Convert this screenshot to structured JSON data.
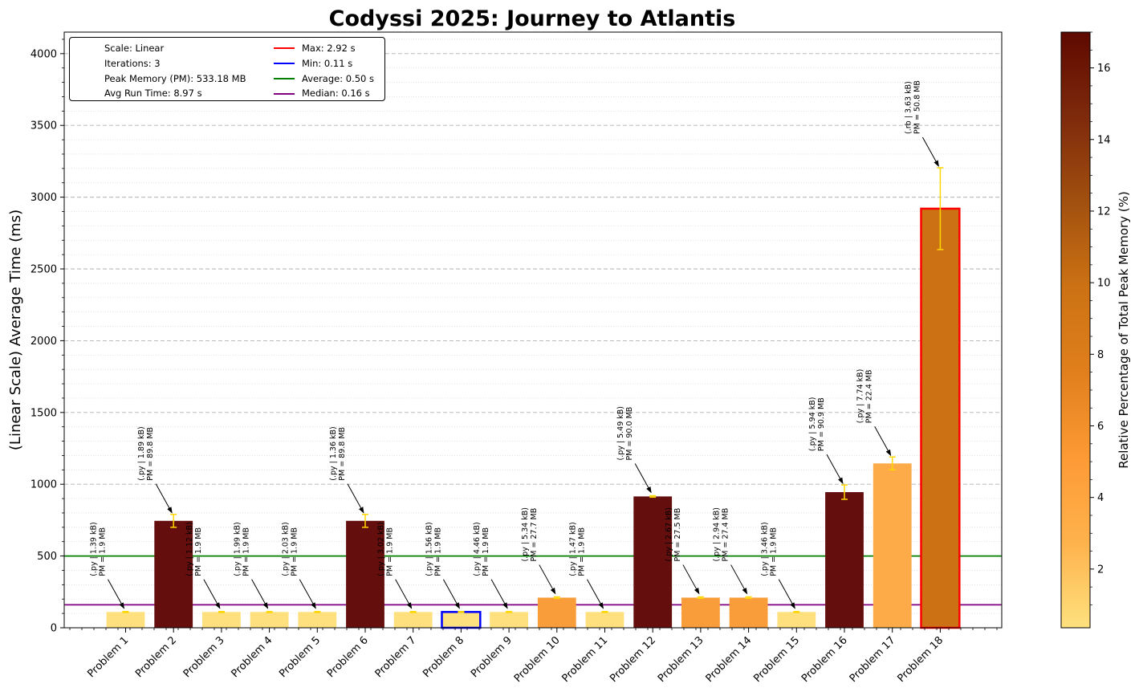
{
  "chart_data": {
    "type": "bar",
    "title": "Codyssi 2025: Journey to Atlantis",
    "ylabel": "(Linear Scale) Average Time (ms)",
    "xlabel": "",
    "ylim": [
      0,
      4150
    ],
    "yticks": [
      0,
      500,
      1000,
      1500,
      2000,
      2500,
      3000,
      3500,
      4000
    ],
    "grid": "horizontal dashed major, dotted minor",
    "categories": [
      "Problem 1",
      "Problem 2",
      "Problem 3",
      "Problem 4",
      "Problem 5",
      "Problem 6",
      "Problem 7",
      "Problem 8",
      "Problem 9",
      "Problem 10",
      "Problem 11",
      "Problem 12",
      "Problem 13",
      "Problem 14",
      "Problem 15",
      "Problem 16",
      "Problem 17",
      "Problem 18"
    ],
    "values": [
      110,
      745,
      110,
      110,
      110,
      745,
      110,
      110,
      110,
      210,
      110,
      915,
      210,
      210,
      110,
      945,
      1145,
      2920
    ],
    "errors": [
      3,
      45,
      3,
      3,
      3,
      45,
      3,
      3,
      3,
      5,
      3,
      5,
      5,
      5,
      3,
      50,
      45,
      285
    ],
    "memory_percent": [
      0.36,
      16.8,
      0.36,
      0.36,
      0.36,
      16.8,
      0.36,
      0.36,
      0.36,
      5.2,
      0.36,
      16.9,
      5.2,
      5.1,
      0.36,
      17.0,
      4.2,
      9.5
    ],
    "bar_colors": [
      "#fee17e",
      "#640e0d",
      "#fee17e",
      "#fee17e",
      "#fee17e",
      "#640e0d",
      "#fee17e",
      "#fee17e",
      "#fee17e",
      "#f99d3a",
      "#fee17e",
      "#640e0d",
      "#f99d3a",
      "#f99d3a",
      "#fee17e",
      "#640e0d",
      "#fdab48",
      "#cc7214"
    ],
    "annotations": [
      {
        "line1": "(.py | 1.39 kB)",
        "line2": "PM = 1.9 MB"
      },
      {
        "line1": "(.py | 1.89 kB)",
        "line2": "PM = 89.8 MB"
      },
      {
        "line1": "(.py | 1.12 kB)",
        "line2": "PM = 1.9 MB"
      },
      {
        "line1": "(.py | 1.99 kB)",
        "line2": "PM = 1.9 MB"
      },
      {
        "line1": "(.py | 2.03 kB)",
        "line2": "PM = 1.9 MB"
      },
      {
        "line1": "(.py | 1.36 kB)",
        "line2": "PM = 89.8 MB"
      },
      {
        "line1": "(.py | 3.02 kB)",
        "line2": "PM = 1.9 MB"
      },
      {
        "line1": "(.py | 1.56 kB)",
        "line2": "PM = 1.9 MB"
      },
      {
        "line1": "(.py | 4.46 kB)",
        "line2": "PM = 1.9 MB"
      },
      {
        "line1": "(.py | 5.34 kB)",
        "line2": "PM = 27.7 MB"
      },
      {
        "line1": "(.py | 1.47 kB)",
        "line2": "PM = 1.9 MB"
      },
      {
        "line1": "(.py | 5.49 kB)",
        "line2": "PM = 90.0 MB"
      },
      {
        "line1": "(.py | 2.67 kB)",
        "line2": "PM = 27.5 MB"
      },
      {
        "line1": "(.py | 2.94 kB)",
        "line2": "PM = 27.4 MB"
      },
      {
        "line1": "(.py | 3.46 kB)",
        "line2": "PM = 1.9 MB"
      },
      {
        "line1": "(.py | 5.94 kB)",
        "line2": "PM = 90.9 MB"
      },
      {
        "line1": "(.py | 7.74 kB)",
        "line2": "PM = 22.4 MB"
      },
      {
        "line1": "(.rb | 3.63 kB)",
        "line2": "PM = 50.8 MB"
      }
    ],
    "max_index": 17,
    "min_index": 7,
    "reference_lines": [
      {
        "name": "Max: 2.92 s",
        "value": null,
        "color": "#ff0000"
      },
      {
        "name": "Min: 0.11 s",
        "value": null,
        "color": "#0000ff"
      },
      {
        "name": "Average: 0.50 s",
        "value": 500,
        "color": "#008000"
      },
      {
        "name": "Median: 0.16 s",
        "value": 160,
        "color": "#800080"
      }
    ],
    "legend_info": [
      "Scale: Linear",
      "Iterations: 3",
      "Peak Memory (PM): 533.18 MB",
      "Avg Run Time: 8.97 s"
    ],
    "legend_position": "upper-left",
    "colorbar": {
      "label": "Relative Percentage of Total Peak Memory (%)",
      "min": 0.36,
      "max": 17.0,
      "ticks": [
        2,
        4,
        6,
        8,
        10,
        12,
        14,
        16
      ],
      "colormap": "YlOrBr-dark",
      "stops": [
        "#fee17e",
        "#feb24c",
        "#fd9a35",
        "#e07f1c",
        "#cc7214",
        "#a2500f",
        "#7e2a0c",
        "#5e0900"
      ]
    }
  }
}
